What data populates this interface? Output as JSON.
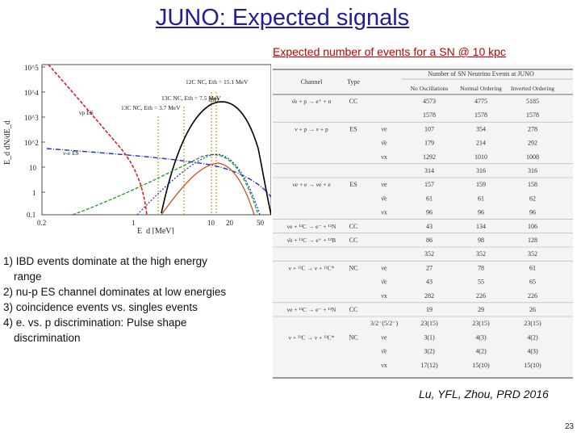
{
  "slide": {
    "title": "JUNO: Expected signals",
    "subtitle": "Expected number of events for a SN @ 10 kpc",
    "notes": [
      "1) IBD events dominate at the high energy",
      "range",
      "2) nu-p ES channel dominates at low energies",
      "3) coincidence events vs. singles events",
      "4) e. vs. p discrimination: Pulse shape",
      "discrimination"
    ],
    "reference": "Lu, YFL, Zhou, PRD 2016",
    "page_number": "23"
  },
  "plot": {
    "ylabel": "E_d dN/dE_d",
    "xlabel": "E_d [MeV]",
    "y_ticks": [
      "10^5",
      "10^4",
      "10^3",
      "10^2",
      "10",
      "1",
      "0.1"
    ],
    "x_ticks": [
      "0.2",
      "1",
      "10",
      "20",
      "50"
    ],
    "annotations": [
      "12C NC, Eth = 15.1 MeV",
      "13C NC, Eth = 7.5 MeV",
      "13C NC, Eth = 3.7 MeV",
      "IBD",
      "νp ES",
      "ν-e ES"
    ],
    "colors": {
      "ibd": "#000000",
      "nu_p_es": "#e01010",
      "nu_e_es": "#1a2fd0",
      "cc": "#1a9a1a",
      "thresholds": "#c9a226"
    }
  },
  "table": {
    "headers": [
      "Channel",
      "Type",
      "Number of SN Neutrino Events at JUNO",
      "No Oscillations",
      "Normal Ordering",
      "Inverted Ordering"
    ],
    "rows": [
      [
        "ν̄e + p → e⁺ + n",
        "CC",
        "",
        "4573",
        "4775",
        "5185"
      ],
      [
        "",
        "",
        "",
        "1578",
        "1578",
        "1578"
      ],
      [
        "ν + p → ν + p",
        "ES",
        "νe",
        "107",
        "354",
        "278"
      ],
      [
        "",
        "",
        "ν̄e",
        "179",
        "214",
        "292"
      ],
      [
        "",
        "",
        "νx",
        "1292",
        "1010",
        "1008"
      ],
      [
        "",
        "",
        "",
        "314",
        "316",
        "316"
      ],
      [
        "νe + e → νe + e",
        "ES",
        "νe",
        "157",
        "159",
        "158"
      ],
      [
        "",
        "",
        "ν̄e",
        "61",
        "61",
        "62"
      ],
      [
        "",
        "",
        "νx",
        "96",
        "96",
        "96"
      ],
      [
        "νe + ¹²C → e⁻ + ¹²N",
        "CC",
        "",
        "43",
        "134",
        "106"
      ],
      [
        "ν̄e + ¹²C → e⁺ + ¹²B",
        "CC",
        "",
        "86",
        "98",
        "128"
      ],
      [
        "",
        "",
        "",
        "352",
        "352",
        "352"
      ],
      [
        "ν + ¹²C → ν + ¹²C*",
        "NC",
        "νe",
        "27",
        "78",
        "61"
      ],
      [
        "",
        "",
        "ν̄e",
        "43",
        "55",
        "65"
      ],
      [
        "",
        "",
        "νx",
        "282",
        "226",
        "226"
      ],
      [
        "νe + ¹³C → e⁻ + ¹³N",
        "CC",
        "",
        "19",
        "29",
        "26"
      ],
      [
        "",
        "",
        "3/2⁻(5/2⁻)",
        "23(15)",
        "23(15)",
        "23(15)"
      ],
      [
        "ν + ¹³C → ν + ¹³C*",
        "NC",
        "νe",
        "3(1)",
        "4(3)",
        "4(2)"
      ],
      [
        "",
        "",
        "ν̄e",
        "3(2)",
        "4(2)",
        "4(3)"
      ],
      [
        "",
        "",
        "νx",
        "17(12)",
        "15(10)",
        "15(10)"
      ]
    ]
  }
}
